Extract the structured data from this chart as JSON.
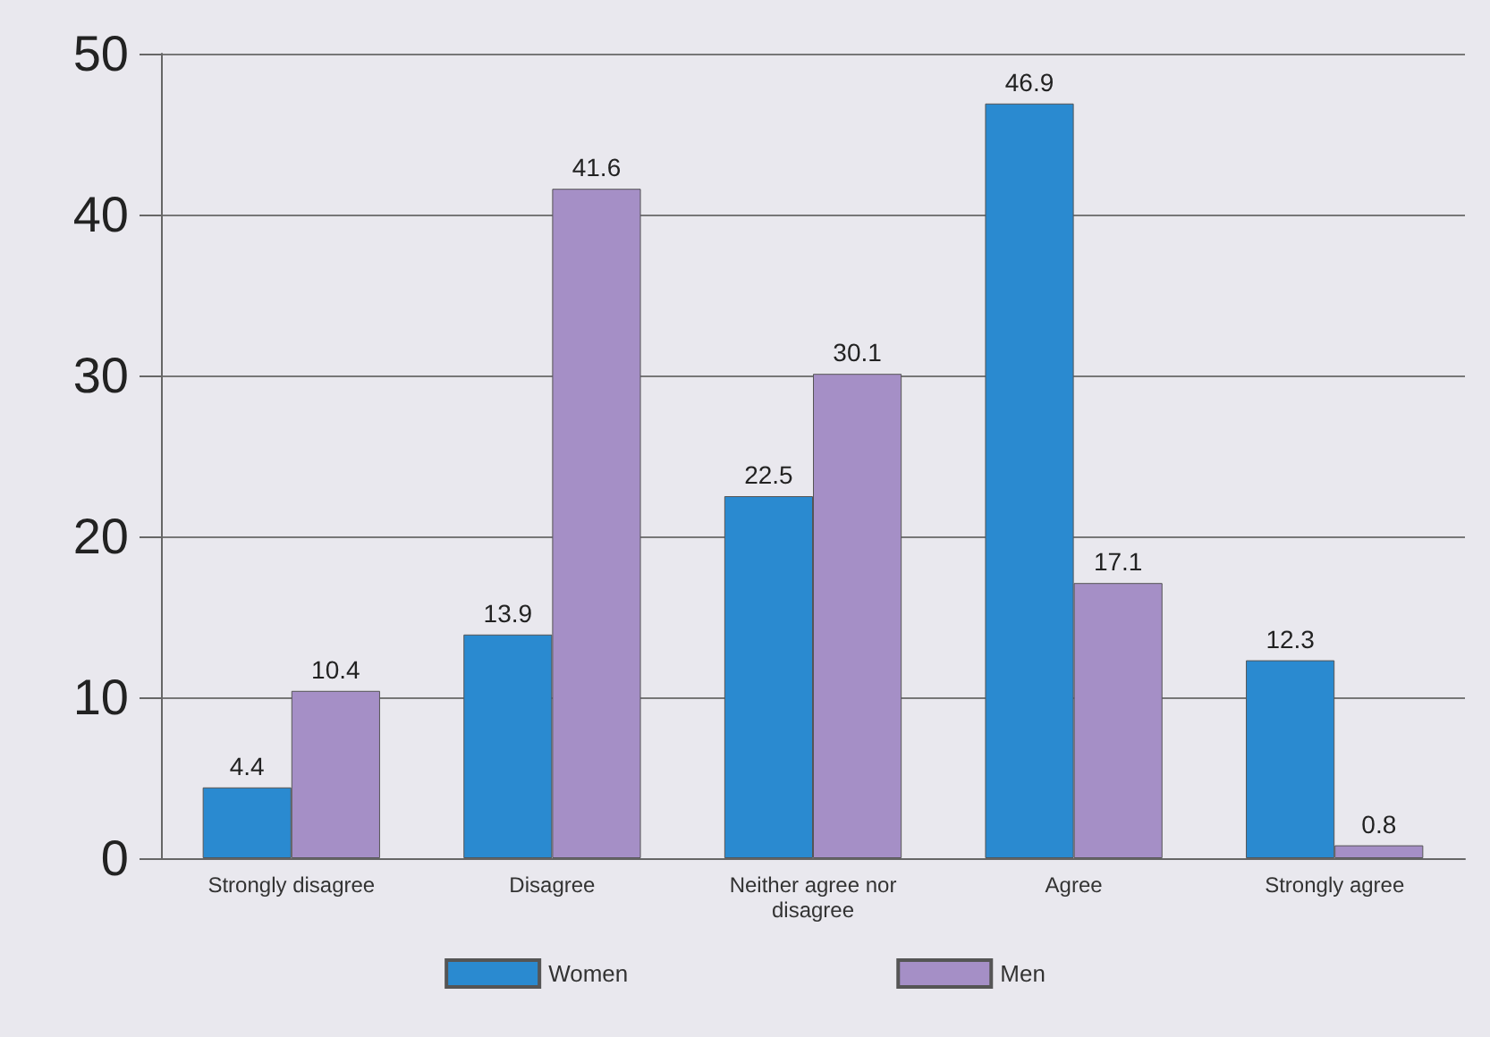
{
  "chart_data": {
    "type": "bar",
    "categories": [
      "Strongly disagree",
      "Disagree",
      "Neither agree nor\ndisagree",
      "Agree",
      "Strongly agree"
    ],
    "series": [
      {
        "name": "Women",
        "color": "#2a8ad0",
        "values": [
          4.4,
          13.9,
          22.5,
          46.9,
          12.3
        ]
      },
      {
        "name": "Men",
        "color": "#a58fc6",
        "values": [
          10.4,
          41.6,
          30.1,
          17.1,
          0.8
        ]
      }
    ],
    "ylim": [
      0,
      50
    ],
    "yticks": [
      0,
      10,
      20,
      30,
      40,
      50
    ],
    "grid": "y",
    "legend": "bottom",
    "data_labels": true
  }
}
